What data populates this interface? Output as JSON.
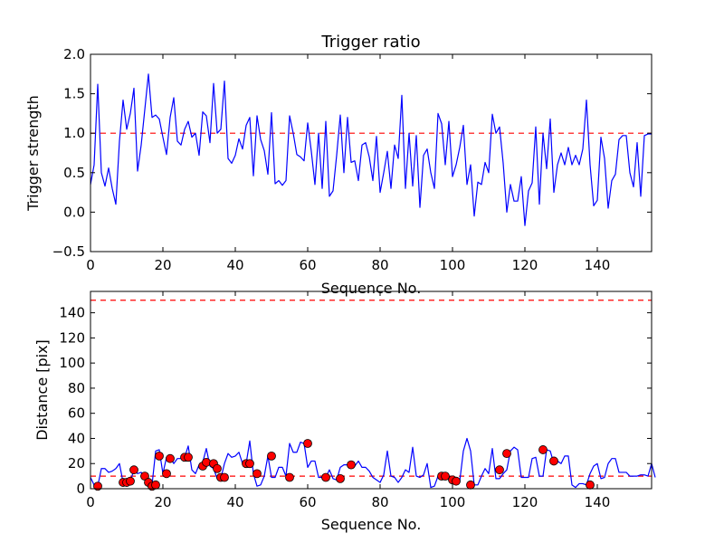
{
  "colors": {
    "line": "#0000ff",
    "threshold": "#ff0000",
    "marker_fill": "#ff0000",
    "marker_edge": "#000000",
    "axes": "#000000",
    "background": "#ffffff"
  },
  "chart_data": [
    {
      "type": "line",
      "title": "Trigger ratio",
      "xlabel": "Sequence No.",
      "ylabel": "Trigger strength",
      "xlim": [
        0,
        155
      ],
      "ylim": [
        -0.5,
        2.0
      ],
      "xticks": [
        0,
        20,
        40,
        60,
        80,
        100,
        120,
        140
      ],
      "yticks": [
        -0.5,
        0.0,
        0.5,
        1.0,
        1.5,
        2.0
      ],
      "ytick_labels": [
        "−0.5",
        "0.0",
        "0.5",
        "1.0",
        "1.5",
        "2.0"
      ],
      "grid": false,
      "series": [
        {
          "name": "trigger strength",
          "values": [
            0.35,
            0.6,
            1.62,
            0.5,
            0.33,
            0.56,
            0.3,
            0.1,
            0.9,
            1.42,
            1.05,
            1.25,
            1.57,
            0.52,
            0.85,
            1.3,
            1.75,
            1.2,
            1.23,
            1.18,
            0.95,
            0.73,
            1.2,
            1.45,
            0.9,
            0.85,
            1.05,
            1.15,
            0.95,
            1.0,
            0.72,
            1.27,
            1.22,
            0.88,
            1.63,
            1.0,
            1.05,
            1.66,
            0.68,
            0.62,
            0.72,
            0.93,
            0.8,
            1.1,
            1.2,
            0.46,
            1.22,
            0.92,
            0.78,
            0.48,
            1.26,
            0.36,
            0.4,
            0.34,
            0.4,
            1.22,
            1.0,
            0.73,
            0.7,
            0.65,
            1.13,
            0.77,
            0.35,
            1.0,
            0.3,
            1.15,
            0.2,
            0.27,
            0.72,
            1.23,
            0.5,
            1.2,
            0.63,
            0.65,
            0.4,
            0.85,
            0.88,
            0.7,
            0.4,
            0.96,
            0.25,
            0.5,
            0.77,
            0.3,
            0.85,
            0.68,
            1.48,
            0.3,
            1.0,
            0.33,
            0.97,
            0.06,
            0.72,
            0.8,
            0.5,
            0.3,
            1.25,
            1.12,
            0.6,
            1.15,
            0.45,
            0.6,
            0.82,
            1.1,
            0.35,
            0.6,
            -0.05,
            0.38,
            0.35,
            0.63,
            0.5,
            1.24,
            1.0,
            1.08,
            0.62,
            0.0,
            0.35,
            0.14,
            0.14,
            0.45,
            -0.17,
            0.27,
            0.37,
            1.08,
            0.1,
            1.0,
            0.55,
            1.18,
            0.25,
            0.6,
            0.75,
            0.6,
            0.82,
            0.6,
            0.72,
            0.6,
            0.8,
            1.42,
            0.6,
            0.08,
            0.15,
            0.95,
            0.68,
            0.05,
            0.4,
            0.48,
            0.92,
            0.97,
            0.97,
            0.5,
            0.32,
            0.88,
            0.2,
            0.97,
            0.99,
            0.99
          ]
        }
      ],
      "threshold": 1.0
    },
    {
      "type": "line",
      "title": "",
      "xlabel": "Sequence No.",
      "ylabel": "Distance [pix]",
      "xlim": [
        0,
        155
      ],
      "ylim": [
        0,
        157
      ],
      "xticks": [
        0,
        20,
        40,
        60,
        80,
        100,
        120,
        140
      ],
      "yticks": [
        0,
        20,
        40,
        60,
        80,
        100,
        120,
        140
      ],
      "grid": false,
      "series": [
        {
          "name": "distance",
          "values": [
            9,
            3,
            2,
            16,
            16,
            13,
            14,
            16,
            20,
            5,
            5,
            6,
            15,
            12,
            13,
            10,
            4,
            3,
            30,
            31,
            12,
            25,
            25,
            20,
            24,
            24,
            25,
            34,
            15,
            12,
            19,
            21,
            32,
            18,
            16,
            8,
            8,
            20,
            28,
            25,
            26,
            29,
            20,
            20,
            38,
            12,
            2,
            3,
            10,
            26,
            9,
            9,
            17,
            17,
            10,
            36,
            29,
            29,
            37,
            36,
            17,
            22,
            22,
            9,
            9,
            9,
            15,
            8,
            7,
            17,
            19,
            19,
            18,
            18,
            22,
            17,
            17,
            14,
            9,
            7,
            5,
            11,
            30,
            10,
            9,
            5,
            9,
            15,
            13,
            33,
            10,
            9,
            11,
            20,
            1,
            2,
            10,
            10,
            9,
            10,
            6,
            5,
            6,
            30,
            40,
            30,
            3,
            3,
            10,
            16,
            12,
            32,
            8,
            8,
            12,
            15,
            30,
            33,
            31,
            9,
            9,
            9,
            24,
            25,
            10,
            10,
            31,
            30,
            20,
            22,
            20,
            26,
            26,
            3,
            1,
            4,
            4,
            3,
            12,
            18,
            20,
            8,
            9,
            20,
            24,
            24,
            13,
            13,
            13,
            10,
            10,
            10,
            11,
            11,
            10,
            20,
            9
          ],
          "markers": [
            [
              2,
              2
            ],
            [
              9,
              5
            ],
            [
              10,
              5
            ],
            [
              11,
              6
            ],
            [
              12,
              15
            ],
            [
              15,
              10
            ],
            [
              16,
              5
            ],
            [
              17,
              2
            ],
            [
              18,
              3
            ],
            [
              19,
              26
            ],
            [
              21,
              12
            ],
            [
              22,
              24
            ],
            [
              26,
              25
            ],
            [
              27,
              25
            ],
            [
              31,
              18
            ],
            [
              32,
              21
            ],
            [
              34,
              20
            ],
            [
              35,
              16
            ],
            [
              36,
              9
            ],
            [
              37,
              9
            ],
            [
              43,
              20
            ],
            [
              44,
              20
            ],
            [
              46,
              12
            ],
            [
              50,
              26
            ],
            [
              55,
              9
            ],
            [
              60,
              36
            ],
            [
              65,
              9
            ],
            [
              69,
              8
            ],
            [
              72,
              19
            ],
            [
              97,
              10
            ],
            [
              98,
              10
            ],
            [
              100,
              7
            ],
            [
              101,
              6
            ],
            [
              105,
              3
            ],
            [
              113,
              15
            ],
            [
              115,
              28
            ],
            [
              125,
              31
            ],
            [
              128,
              22
            ],
            [
              138,
              3
            ]
          ]
        }
      ],
      "thresholds": [
        10,
        150
      ]
    }
  ]
}
